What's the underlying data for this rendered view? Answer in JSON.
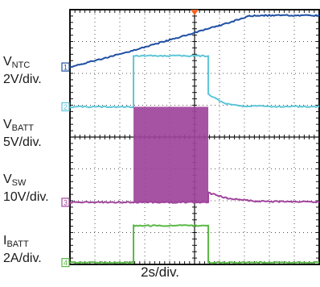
{
  "chart_data": {
    "type": "line",
    "title": "",
    "x_unit_label": "2s/div.",
    "x_divisions": 10,
    "y_divisions": 8,
    "x_range": [
      0,
      10
    ],
    "grid": true,
    "trigger_marker_color": "#f26522",
    "series": [
      {
        "name_main": "V",
        "name_sub": "NTC",
        "scale": "2V/div.",
        "marker": "1",
        "color": "#1f4fa3",
        "points": [
          [
            0,
            6.2
          ],
          [
            2,
            6.6
          ],
          [
            4,
            7.05
          ],
          [
            6,
            7.5
          ],
          [
            7.2,
            7.8
          ],
          [
            7.8,
            7.82
          ],
          [
            10,
            7.82
          ]
        ]
      },
      {
        "name_main": "V",
        "name_sub": "BATT",
        "scale": "5V/div.",
        "marker": "2",
        "color": "#5ec6d8",
        "points": [
          [
            0,
            4.95
          ],
          [
            2.55,
            4.95
          ],
          [
            2.55,
            6.55
          ],
          [
            5.55,
            6.55
          ],
          [
            5.55,
            5.35
          ],
          [
            6.2,
            5.05
          ],
          [
            7,
            4.97
          ],
          [
            10,
            4.95
          ]
        ]
      },
      {
        "name_main": "V",
        "name_sub": "SW",
        "scale": "10V/div.",
        "marker": "3",
        "color": "#a0449c",
        "points": [
          [
            0,
            1.95
          ],
          [
            2.55,
            1.95
          ],
          [
            5.55,
            1.95
          ],
          [
            5.55,
            2.25
          ],
          [
            6.3,
            2.08
          ],
          [
            7.5,
            1.98
          ],
          [
            10,
            1.96
          ]
        ],
        "switching_band": [
          2.55,
          5.55,
          1.95,
          4.95
        ]
      },
      {
        "name_main": "I",
        "name_sub": "BATT",
        "scale": "2A/div.",
        "marker": "4",
        "color": "#5ab846",
        "points": [
          [
            0,
            0.06
          ],
          [
            2.55,
            0.06
          ],
          [
            2.55,
            1.22
          ],
          [
            5.55,
            1.22
          ],
          [
            5.55,
            0.06
          ],
          [
            10,
            0.06
          ]
        ]
      }
    ]
  }
}
